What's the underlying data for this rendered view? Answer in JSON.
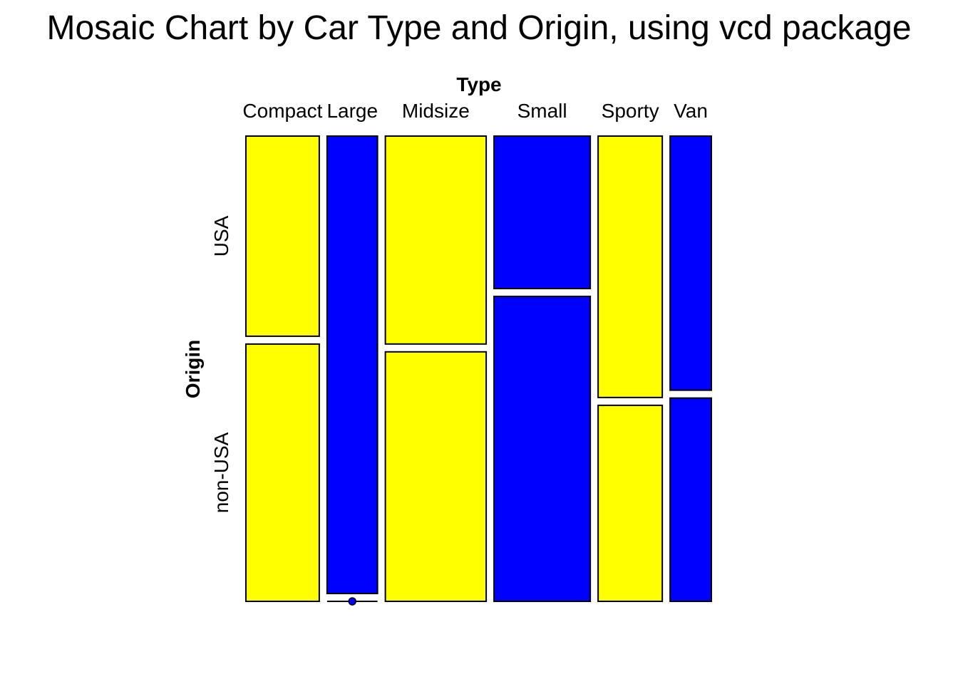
{
  "chart_data": {
    "type": "mosaic",
    "title": "Mosaic Chart by Car Type and Origin, using vcd package",
    "column_variable": "Type",
    "row_variable": "Origin",
    "categories": [
      "Compact",
      "Large",
      "Midsize",
      "Small",
      "Sporty",
      "Van"
    ],
    "rows": [
      "USA",
      "non-USA"
    ],
    "counts": {
      "USA": [
        7,
        11,
        10,
        7,
        8,
        5
      ],
      "non-USA": [
        9,
        0,
        12,
        14,
        6,
        4
      ]
    },
    "column_totals": [
      16,
      11,
      22,
      21,
      14,
      9
    ],
    "fill_colors": [
      "#ffff00",
      "#0000ff",
      "#ffff00",
      "#0000ff",
      "#ffff00",
      "#0000ff"
    ],
    "stroke_color": "#000000",
    "grid": false
  }
}
